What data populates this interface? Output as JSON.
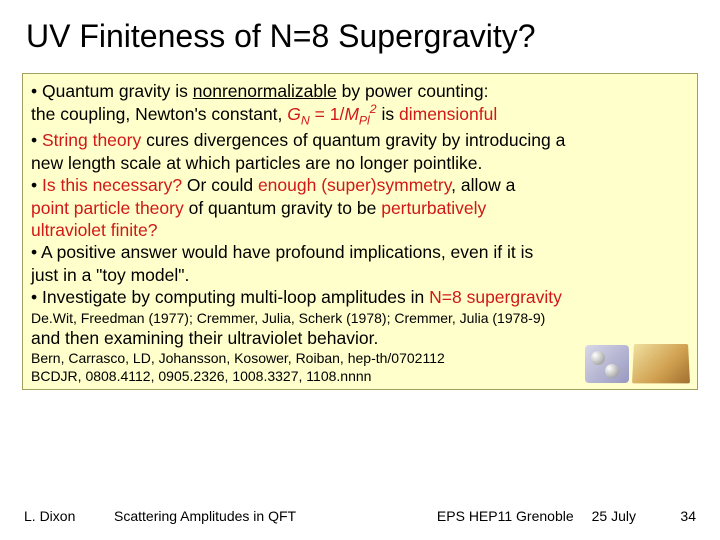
{
  "title": "UV Finiteness of N=8 Supergravity?",
  "box": {
    "b1_a": "• Quantum gravity is ",
    "b1_b": "nonrenormalizable",
    "b1_c": " by power counting:",
    "b2_a": "the coupling, Newton's constant,  ",
    "b2_gn": "G",
    "b2_gn_sub": "N",
    "b2_eq": " = 1/",
    "b2_m": "M",
    "b2_pl": "Pl",
    "b2_sq": "2",
    "b2_d": "  is ",
    "b2_e": "dimensionful",
    "b3_a": "• ",
    "b3_b": "String theory",
    "b3_c": " cures divergences of quantum gravity by introducing a",
    "b4": "new length scale at which particles are no longer pointlike.",
    "b5_a": "• ",
    "b5_b": "Is this necessary?",
    "b5_c": "   Or could ",
    "b5_d": "enough (super)symmetry",
    "b5_e": ", allow a",
    "b6_a": "point particle theory",
    "b6_b": " of quantum gravity to be ",
    "b6_c": "perturbatively",
    "b7": "ultraviolet finite?",
    "b8": "• A positive answer would have profound implications, even if it is",
    "b9": "just in a \"toy model\".",
    "b10_a": "• Investigate by computing multi-loop amplitudes in ",
    "b10_b": "N=8 supergravity",
    "ref1": "De.Wit, Freedman (1977); Cremmer, Julia, Scherk (1978); Cremmer, Julia (1978-9)",
    "b11": "and then examining their ultraviolet behavior.",
    "ref2a": "Bern, Carrasco, LD, Johansson, Kosower, Roiban, hep-th/0702112",
    "ref2b": "BCDJR, 0808.4112, 0905.2326, 1008.3327, 1108.nnnn"
  },
  "footer": {
    "author": "L. Dixon",
    "talk": "Scattering Amplitudes in QFT",
    "venue": "EPS HEP11 Grenoble",
    "date": "25 July",
    "page": "34"
  },
  "colors": {
    "box_bg": "#ffffcc",
    "red": "#d01818",
    "text": "#000000"
  }
}
